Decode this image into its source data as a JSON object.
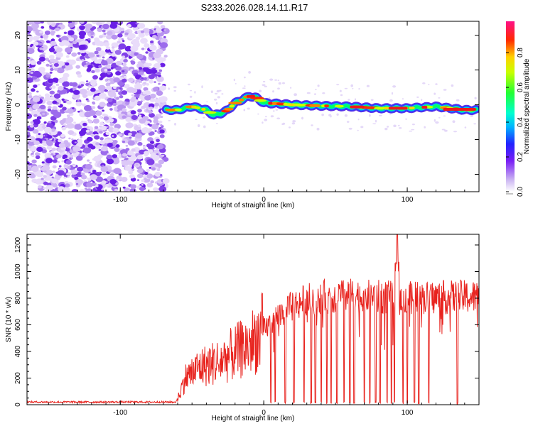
{
  "title": "S233.2026.028.14.11.R17",
  "chart_data": [
    {
      "type": "heatmap",
      "xlabel": "Height of straight line (km)",
      "ylabel": "Frequency (Hz)",
      "xlim": [
        -165,
        150
      ],
      "ylim": [
        -25,
        24
      ],
      "xticks": [
        -100,
        0,
        100
      ],
      "yticks": [
        -20,
        -10,
        0,
        10,
        20
      ],
      "noise_region_x": [
        -165,
        -68
      ],
      "ridge": {
        "x": [
          -68,
          -60,
          -50,
          -40,
          -35,
          -30,
          -25,
          -20,
          -15,
          -10,
          -5,
          0,
          10,
          20,
          40,
          60,
          80,
          100,
          120,
          130,
          140,
          148
        ],
        "freq": [
          -1.5,
          -1.5,
          -0.5,
          -1.5,
          -3.0,
          -2.5,
          -1.5,
          0.5,
          1.5,
          2.5,
          2.0,
          0.5,
          0.3,
          0.0,
          -0.3,
          -0.5,
          -1.0,
          -1.0,
          -0.5,
          -1.0,
          -1.5,
          -1.5
        ]
      },
      "colorbar": {
        "label": "Normalized spectral amplitude",
        "ticks": [
          "0.0",
          "0.2",
          "0.4",
          "0.6",
          "0.8"
        ],
        "tick_values": [
          0.0,
          0.2,
          0.4,
          0.6,
          0.8
        ],
        "range": [
          0,
          0.98
        ]
      }
    },
    {
      "type": "line",
      "color": "#e8231e",
      "xlabel": "Height of straight line (km)",
      "ylabel": "SNR (10 * v/v)",
      "xlim": [
        -165,
        150
      ],
      "ylim": [
        0,
        1280
      ],
      "xticks": [
        -100,
        0,
        100
      ],
      "yticks": [
        0,
        200,
        400,
        600,
        800,
        1000,
        1200
      ],
      "envelope": {
        "x": [
          -165,
          -61,
          -58,
          -55,
          -45,
          -30,
          -20,
          -10,
          0,
          10,
          20,
          30,
          40,
          60,
          80,
          100,
          120,
          148
        ],
        "y": [
          20,
          20,
          100,
          200,
          280,
          330,
          390,
          450,
          560,
          670,
          740,
          790,
          810,
          820,
          810,
          800,
          805,
          810
        ]
      },
      "spike": {
        "x": 93,
        "y": 1280
      },
      "dropouts_x": [
        5,
        8,
        15,
        21,
        28,
        33,
        36,
        40,
        44,
        47,
        51,
        56,
        60,
        63,
        70,
        74,
        78,
        81,
        86,
        89,
        91,
        97,
        100,
        105,
        108,
        115,
        135
      ],
      "dropout_min_y": 5
    }
  ]
}
